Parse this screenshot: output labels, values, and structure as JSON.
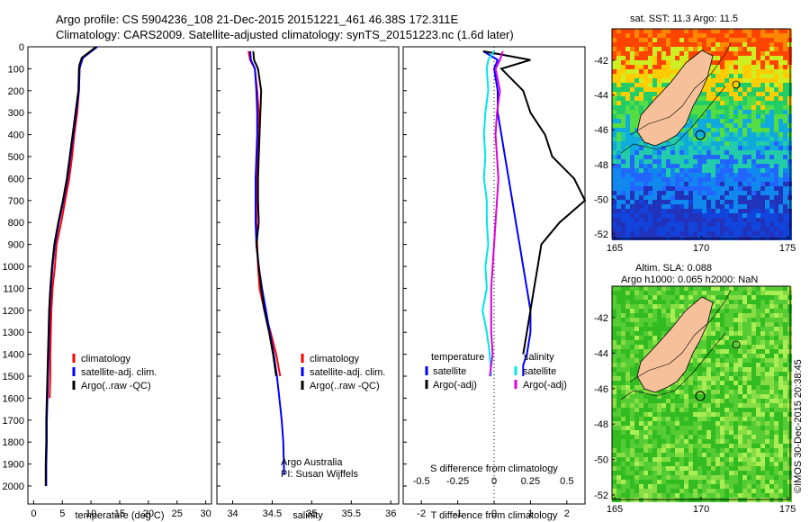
{
  "header": {
    "line1": "Argo profile: CS 5904236_108 21-Dec-2015 20151221_461 46.38S 172.311E",
    "line2": "Climatology: CARS2009. Satellite-adjusted climatology: synTS_20151223.nc (1.6d later)"
  },
  "colors": {
    "climatology": "#ff0000",
    "satellite": "#0000ff",
    "argo": "#000000",
    "sat_s": "#00e5ee",
    "argo_s": "#dd00dd"
  },
  "chart_data": [
    {
      "type": "line",
      "id": "temperature",
      "xlabel": "temperature (deg C)",
      "ylabel": "",
      "xlim": [
        -1,
        31
      ],
      "ylim": [
        2050,
        0
      ],
      "xticks": [
        "0",
        "5",
        "10",
        "15",
        "20",
        "25",
        "30"
      ],
      "yticks": [
        "0",
        "100",
        "200",
        "300",
        "400",
        "500",
        "600",
        "700",
        "800",
        "900",
        "1000",
        "1100",
        "1200",
        "1300",
        "1400",
        "1500",
        "1600",
        "1700",
        "1800",
        "1900",
        "2000"
      ],
      "legend": [
        "climatology",
        "satellite-adj. clim.",
        "Argo(..raw -QC)"
      ],
      "series": [
        {
          "name": "climatology",
          "x": [
            11.0,
            9.5,
            8.5,
            8.2,
            8.0,
            7.9,
            7.6,
            7.1,
            6.7,
            6.2,
            5.5,
            4.8,
            4.0,
            3.7,
            3.3,
            3.1,
            3.0,
            2.9,
            2.9,
            2.8
          ],
          "y": [
            0,
            30,
            50,
            80,
            100,
            200,
            300,
            400,
            500,
            600,
            700,
            800,
            900,
            1000,
            1100,
            1200,
            1300,
            1400,
            1500,
            1600
          ]
        },
        {
          "name": "satellite-adj. clim.",
          "x": [
            11.1,
            9.6,
            8.6,
            8.2,
            8.0,
            7.9,
            7.4,
            6.9,
            6.4,
            5.9,
            5.2,
            4.4,
            3.7,
            3.3,
            3.0,
            2.8,
            2.7,
            2.6,
            2.5,
            2.4,
            2.3,
            2.3,
            2.2,
            2.2
          ],
          "y": [
            0,
            30,
            50,
            80,
            100,
            200,
            300,
            400,
            500,
            600,
            700,
            800,
            900,
            1000,
            1100,
            1200,
            1300,
            1400,
            1500,
            1600,
            1700,
            1800,
            1900,
            2000
          ]
        },
        {
          "name": "Argo(..raw -QC)",
          "x": [
            10.9,
            9.4,
            8.4,
            8.0,
            7.9,
            7.8,
            7.3,
            6.8,
            6.3,
            5.8,
            5.1,
            4.3,
            3.6,
            3.2,
            2.9,
            2.7,
            2.6,
            2.5,
            2.4,
            2.3,
            2.2,
            2.2,
            2.1,
            2.1
          ],
          "y": [
            0,
            30,
            50,
            80,
            100,
            200,
            300,
            400,
            500,
            600,
            700,
            800,
            900,
            1000,
            1100,
            1200,
            1300,
            1400,
            1500,
            1600,
            1700,
            1800,
            1900,
            2000
          ]
        }
      ]
    },
    {
      "type": "line",
      "id": "salinity",
      "xlabel": "salinity",
      "xlim": [
        33.8,
        36.1
      ],
      "ylim": [
        2050,
        0
      ],
      "xticks": [
        "34",
        "34.5",
        "35",
        "35.5",
        "36"
      ],
      "legend": [
        "climatology",
        "satellite-adj. clim.",
        "Argo(..raw -QC)"
      ],
      "annotation": [
        "Argo Australia",
        "PI: Susan Wijffels"
      ],
      "series": [
        {
          "name": "climatology",
          "x": [
            34.2,
            34.22,
            34.28,
            34.31,
            34.33,
            34.32,
            34.31,
            34.3,
            34.3,
            34.3,
            34.31,
            34.32,
            34.34,
            34.4,
            34.48,
            34.55,
            34.6
          ],
          "y": [
            20,
            60,
            100,
            200,
            300,
            400,
            500,
            600,
            700,
            800,
            900,
            1000,
            1100,
            1200,
            1300,
            1400,
            1500
          ]
        },
        {
          "name": "satellite-adj. clim.",
          "x": [
            34.22,
            34.23,
            34.28,
            34.3,
            34.31,
            34.31,
            34.3,
            34.29,
            34.29,
            34.29,
            34.3,
            34.33,
            34.37,
            34.42,
            34.47,
            34.52,
            34.56,
            34.59,
            34.62,
            34.64,
            34.65
          ],
          "y": [
            20,
            60,
            100,
            200,
            300,
            400,
            500,
            600,
            700,
            800,
            900,
            1000,
            1100,
            1200,
            1300,
            1400,
            1500,
            1600,
            1700,
            1800,
            1950
          ]
        },
        {
          "name": "Argo(..raw -QC)",
          "x": [
            34.26,
            34.27,
            34.32,
            34.36,
            34.35,
            34.34,
            34.33,
            34.32,
            34.32,
            34.33,
            34.3,
            34.33,
            34.36,
            34.4,
            34.46,
            34.51,
            34.55
          ],
          "y": [
            20,
            60,
            100,
            200,
            300,
            400,
            500,
            600,
            700,
            800,
            900,
            1000,
            1100,
            1200,
            1300,
            1400,
            1500
          ]
        }
      ]
    },
    {
      "type": "line",
      "id": "difference",
      "xlabel": "T difference from climatology",
      "xlabel_top": "S difference from climatology",
      "xlim": [
        -2.5,
        2.5
      ],
      "ylim": [
        2050,
        0
      ],
      "xticks": [
        "-2",
        "-1",
        "0",
        "1",
        "2"
      ],
      "xticks_top": [
        "-0.5",
        "-0.25",
        "0",
        "0.25",
        "0.5"
      ],
      "legend_t_title": "temperature",
      "legend_t": [
        "satellite",
        "Argo(-adj)"
      ],
      "legend_s_title": "salinity",
      "legend_s": [
        "satellite",
        "Argo(-adj)"
      ],
      "series": [
        {
          "name": "T satellite",
          "x": [
            -0.3,
            0.1,
            0.0,
            0.1,
            0.1,
            0.2,
            0.3,
            0.4,
            0.5,
            0.6,
            0.7,
            0.8,
            0.9,
            1.0,
            1.0,
            0.9,
            0.8,
            0.8
          ],
          "y": [
            20,
            60,
            100,
            200,
            300,
            400,
            500,
            600,
            700,
            800,
            900,
            1000,
            1100,
            1200,
            1300,
            1400,
            1450,
            1500
          ]
        },
        {
          "name": "T Argo(-adj)",
          "x": [
            -0.3,
            1.0,
            0.2,
            0.8,
            1.0,
            1.4,
            1.6,
            2.2,
            2.5,
            1.8,
            1.3,
            1.2,
            1.1,
            1.0,
            0.9,
            0.8
          ],
          "y": [
            20,
            60,
            100,
            200,
            300,
            400,
            500,
            600,
            700,
            800,
            900,
            1000,
            1100,
            1200,
            1300,
            1400
          ]
        },
        {
          "name": "S satellite",
          "x": [
            0.0,
            -0.04,
            -0.05,
            -0.04,
            -0.06,
            -0.07,
            -0.06,
            -0.07,
            -0.05,
            -0.05,
            -0.04,
            -0.06,
            -0.05,
            -0.08,
            -0.05,
            -0.03,
            -0.02
          ],
          "y": [
            20,
            60,
            100,
            200,
            300,
            400,
            500,
            600,
            700,
            800,
            900,
            1000,
            1100,
            1200,
            1300,
            1400,
            1500
          ]
        },
        {
          "name": "S Argo(-adj)",
          "x": [
            0.06,
            0.04,
            0.01,
            0.04,
            0.02,
            0.01,
            0.02,
            0.03,
            0.02,
            0.01,
            0.0,
            -0.01,
            -0.02,
            -0.02,
            -0.02,
            -0.01,
            -0.03
          ],
          "y": [
            20,
            60,
            100,
            200,
            300,
            400,
            500,
            600,
            700,
            800,
            900,
            1000,
            1100,
            1200,
            1300,
            1400,
            1500
          ]
        }
      ]
    }
  ],
  "map_sst": {
    "title": "sat. SST: 11.3 Argo: 11.5",
    "xticks": [
      "165",
      "170",
      "175"
    ],
    "yticks": [
      "-42",
      "-44",
      "-46",
      "-48",
      "-50",
      "-52"
    ]
  },
  "map_sla": {
    "title1": "Altim. SLA: 0.088",
    "title2": "Argo h1000: 0.065 h2000: NaN",
    "xticks": [
      "165",
      "170",
      "175"
    ],
    "yticks": [
      "-42",
      "-44",
      "-46",
      "-48",
      "-50",
      "-52"
    ],
    "credit": "©IMOS 30-Dec-2015 20:38:45"
  }
}
